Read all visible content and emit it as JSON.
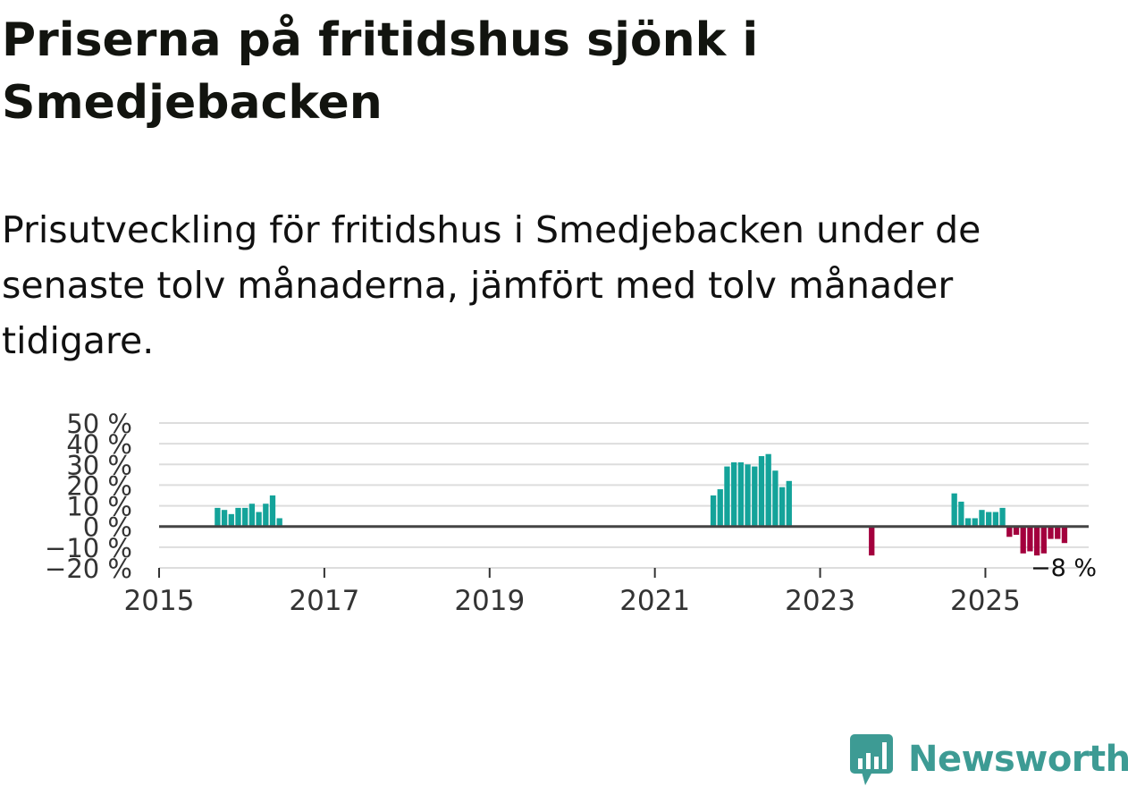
{
  "title": "Priserna på fritidshus sjönk i Smedjebacken",
  "subtitle": "Prisutveckling för fritidshus i Smedjebacken under de senaste tolv månaderna, jämfört med tolv månader tidigare.",
  "brand": {
    "name": "Newsworthy",
    "icon": "newsworthy-logo-icon",
    "color": "#3d9b94"
  },
  "chart_data": {
    "type": "bar",
    "title": "Priserna på fritidshus sjönk i Smedjebacken",
    "xlabel": "",
    "ylabel": "",
    "ylim": [
      -20,
      50
    ],
    "xlim": [
      2015.0,
      2026.25
    ],
    "yticks": [
      {
        "value": 50,
        "label": "50 %"
      },
      {
        "value": 40,
        "label": "40 %"
      },
      {
        "value": 30,
        "label": "30 %"
      },
      {
        "value": 20,
        "label": "20 %"
      },
      {
        "value": 10,
        "label": "10 %"
      },
      {
        "value": 0,
        "label": "0 %"
      },
      {
        "value": -10,
        "label": "−10 %"
      },
      {
        "value": -20,
        "label": "−20 %"
      }
    ],
    "xticks": [
      {
        "value": 2015,
        "label": "2015"
      },
      {
        "value": 2017,
        "label": "2017"
      },
      {
        "value": 2019,
        "label": "2019"
      },
      {
        "value": 2021,
        "label": "2021"
      },
      {
        "value": 2023,
        "label": "2023"
      },
      {
        "value": 2025,
        "label": "2025"
      }
    ],
    "grid": true,
    "colors": {
      "positive": "#14a39a",
      "negative": "#a3003d",
      "grid": "#dddddd",
      "zero": "#444444"
    },
    "annotation": {
      "label": "−8 %",
      "series_index": 0
    },
    "series": [
      {
        "name": "Prisutveckling",
        "points": [
          {
            "date": "2015-09",
            "value": 9
          },
          {
            "date": "2015-10",
            "value": 8
          },
          {
            "date": "2015-11",
            "value": 6
          },
          {
            "date": "2015-12",
            "value": 9
          },
          {
            "date": "2016-01",
            "value": 9
          },
          {
            "date": "2016-02",
            "value": 11
          },
          {
            "date": "2016-03",
            "value": 7
          },
          {
            "date": "2016-04",
            "value": 11
          },
          {
            "date": "2016-05",
            "value": 15
          },
          {
            "date": "2016-06",
            "value": 4
          },
          {
            "date": "2021-09",
            "value": 15
          },
          {
            "date": "2021-10",
            "value": 18
          },
          {
            "date": "2021-11",
            "value": 29
          },
          {
            "date": "2021-12",
            "value": 31
          },
          {
            "date": "2022-01",
            "value": 31
          },
          {
            "date": "2022-02",
            "value": 30
          },
          {
            "date": "2022-03",
            "value": 29
          },
          {
            "date": "2022-04",
            "value": 34
          },
          {
            "date": "2022-05",
            "value": 35
          },
          {
            "date": "2022-06",
            "value": 27
          },
          {
            "date": "2022-07",
            "value": 19
          },
          {
            "date": "2022-08",
            "value": 22
          },
          {
            "date": "2023-08",
            "value": -14
          },
          {
            "date": "2024-08",
            "value": 16
          },
          {
            "date": "2024-09",
            "value": 12
          },
          {
            "date": "2024-10",
            "value": 4
          },
          {
            "date": "2024-11",
            "value": 4
          },
          {
            "date": "2024-12",
            "value": 8
          },
          {
            "date": "2025-01",
            "value": 7
          },
          {
            "date": "2025-02",
            "value": 7
          },
          {
            "date": "2025-03",
            "value": 9
          },
          {
            "date": "2025-04",
            "value": -5
          },
          {
            "date": "2025-05",
            "value": -4
          },
          {
            "date": "2025-06",
            "value": -13
          },
          {
            "date": "2025-07",
            "value": -12
          },
          {
            "date": "2025-08",
            "value": -14
          },
          {
            "date": "2025-09",
            "value": -13
          },
          {
            "date": "2025-10",
            "value": -6
          },
          {
            "date": "2025-11",
            "value": -6
          },
          {
            "date": "2025-12",
            "value": -8
          }
        ]
      }
    ]
  }
}
